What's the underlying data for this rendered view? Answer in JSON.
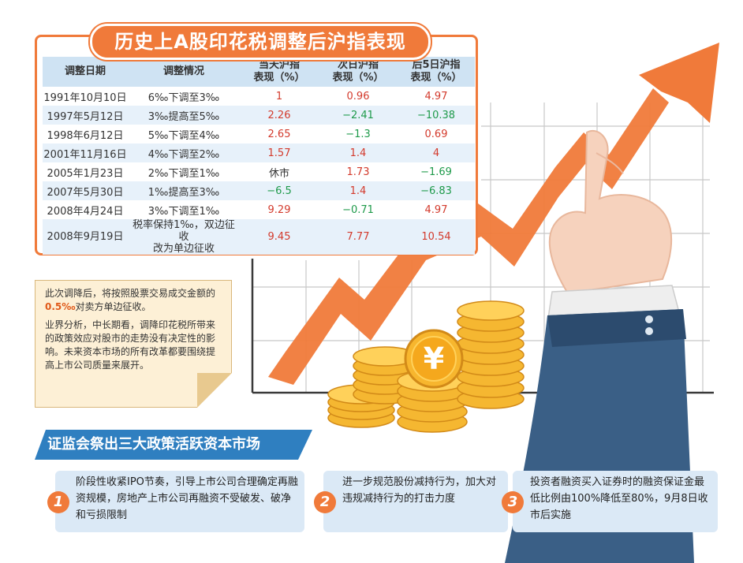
{
  "title": "历史上A股印花税调整后沪指表现",
  "table": {
    "headers": {
      "date": "调整日期",
      "change": "调整情况",
      "same_day_1": "当天沪指",
      "same_day_2": "表现（%）",
      "next_day_1": "次日沪指",
      "next_day_2": "表现（%）",
      "five_day_1": "后5日沪指",
      "five_day_2": "表现（%）"
    },
    "rows": [
      {
        "date": "1991年10月10日",
        "change": "6‰下调至3‰",
        "same_day": "1",
        "next_day": "0.96",
        "five_day": "4.97"
      },
      {
        "date": "1997年5月12日",
        "change": "3‰提高至5‰",
        "same_day": "2.26",
        "next_day": "−2.41",
        "five_day": "−10.38"
      },
      {
        "date": "1998年6月12日",
        "change": "5‰下调至4‰",
        "same_day": "2.65",
        "next_day": "−1.3",
        "five_day": "0.69"
      },
      {
        "date": "2001年11月16日",
        "change": "4‰下调至2‰",
        "same_day": "1.57",
        "next_day": "1.4",
        "five_day": "4"
      },
      {
        "date": "2005年1月23日",
        "change": "2‰下调至1‰",
        "same_day": "休市",
        "next_day": "1.73",
        "five_day": "−1.69"
      },
      {
        "date": "2007年5月30日",
        "change": "1‰提高至3‰",
        "same_day": "−6.5",
        "next_day": "1.4",
        "five_day": "−6.83"
      },
      {
        "date": "2008年4月24日",
        "change": "3‰下调至1‰",
        "same_day": "9.29",
        "next_day": "−0.71",
        "five_day": "4.97"
      },
      {
        "date": "2008年9月19日",
        "change_1": "税率保持1‰，双边征收",
        "change_2": "改为单边征收",
        "same_day": "9.45",
        "next_day": "7.77",
        "five_day": "10.54"
      }
    ]
  },
  "note": {
    "p1_before": "此次调降后，将按照股票交易成交金额的",
    "p1_highlight": "0.5‰",
    "p1_after": "对卖方单边征收。",
    "p2": "业界分析，中长期看，调降印花税所带来的政策效应对股市的走势没有决定性的影响。未来资本市场的所有改革都要围绕提高上市公司质量来展开。"
  },
  "banner": "证监会祭出三大政策活跃资本市场",
  "policies": [
    {
      "num": "1",
      "text": "阶段性收紧IPO节奏，引导上市公司合理确定再融资规模，房地产上市公司再融资不受破发、破净和亏损限制"
    },
    {
      "num": "2",
      "text": "进一步规范股份减持行为，加大对违规减持行为的打击力度"
    },
    {
      "num": "3",
      "text": "投资者融资买入证券时的融资保证金最低比例由100%降低至80%，9月8日收市后实施"
    }
  ],
  "coin_symbol": "¥",
  "colors": {
    "accent_orange": "#f07a3a",
    "banner_blue": "#2f7fc0",
    "header_blue": "#cfe3f3",
    "positive_red": "#d33a2c",
    "negative_green": "#1e9a4a",
    "coin_gold": "#f5b731"
  }
}
